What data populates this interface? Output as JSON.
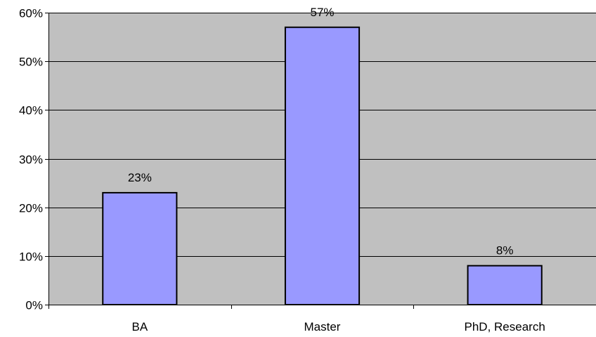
{
  "chart_data": {
    "type": "bar",
    "categories": [
      "BA",
      "Master",
      "PhD, Research"
    ],
    "values": [
      23,
      57,
      8
    ],
    "data_labels": [
      "23%",
      "57%",
      "8%"
    ],
    "ylim": [
      0,
      60
    ],
    "yticks": [
      0,
      10,
      20,
      30,
      40,
      50,
      60
    ],
    "ytick_labels": [
      "0%",
      "10%",
      "20%",
      "30%",
      "40%",
      "50%",
      "60%"
    ],
    "title": "",
    "xlabel": "",
    "ylabel": "",
    "grid": true,
    "legend": "none",
    "colors": {
      "bar_fill": "#9999ff",
      "plot_background": "#c0c0c0",
      "gridline": "#000000"
    }
  }
}
